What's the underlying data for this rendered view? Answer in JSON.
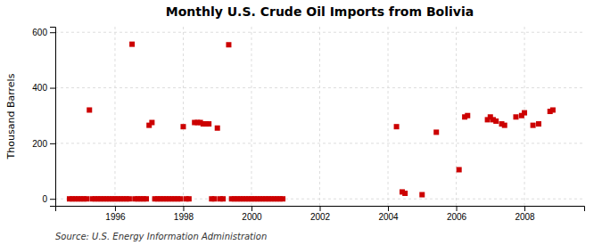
{
  "chart_data": {
    "type": "scatter",
    "title": "Monthly U.S. Crude Oil Imports from Bolivia",
    "ylabel": "Thousand Barrels",
    "annotations": [
      "Source: U.S. Energy Information Administration"
    ],
    "color": "#cc0000",
    "marker": "square",
    "grid": true,
    "xlim": [
      1994.25,
      2009.75
    ],
    "xticks": [
      1996,
      1998,
      2000,
      2002,
      2004,
      2006,
      2008
    ],
    "ylim": [
      -25,
      620
    ],
    "yticks": [
      0,
      200,
      400,
      600
    ],
    "x": [
      1995.25,
      1996.5,
      1997.0,
      1997.083,
      1998.0,
      1998.333,
      1998.417,
      1998.5,
      1998.583,
      1998.667,
      1998.75,
      1999.0,
      1999.333,
      1994.667,
      1994.75,
      1994.833,
      1994.917,
      1995.0,
      1995.083,
      1995.167,
      1995.333,
      1995.417,
      1995.5,
      1995.583,
      1995.667,
      1995.75,
      1995.833,
      1995.917,
      1996.0,
      1996.083,
      1996.167,
      1996.25,
      1996.333,
      1996.417,
      1996.583,
      1996.667,
      1996.75,
      1996.833,
      1996.917,
      1997.167,
      1997.25,
      1997.333,
      1997.417,
      1997.5,
      1997.583,
      1997.667,
      1997.75,
      1997.833,
      1997.917,
      1998.083,
      1998.167,
      1998.833,
      1998.917,
      1999.083,
      1999.167,
      1999.417,
      1999.5,
      1999.583,
      1999.667,
      1999.75,
      1999.833,
      1999.917,
      2000.0,
      2000.083,
      2000.167,
      2000.25,
      2000.333,
      2000.417,
      2000.5,
      2000.583,
      2000.667,
      2000.75,
      2000.833,
      2000.917,
      2004.25,
      2004.417,
      2004.5,
      2005.0,
      2005.417,
      2006.083,
      2006.25,
      2006.333,
      2006.917,
      2007.0,
      2007.083,
      2007.167,
      2007.333,
      2007.417,
      2007.75,
      2007.917,
      2008.0,
      2008.25,
      2008.417,
      2008.75,
      2008.833
    ],
    "values": [
      320,
      557,
      265,
      275,
      260,
      275,
      275,
      275,
      270,
      270,
      270,
      255,
      555,
      0,
      0,
      0,
      0,
      0,
      0,
      0,
      0,
      0,
      0,
      0,
      0,
      0,
      0,
      0,
      0,
      0,
      0,
      0,
      0,
      0,
      0,
      0,
      0,
      0,
      0,
      0,
      0,
      0,
      0,
      0,
      0,
      0,
      0,
      0,
      0,
      0,
      0,
      0,
      0,
      0,
      0,
      0,
      0,
      0,
      0,
      0,
      0,
      0,
      0,
      0,
      0,
      0,
      0,
      0,
      0,
      0,
      0,
      0,
      0,
      0,
      260,
      25,
      20,
      15,
      240,
      105,
      295,
      300,
      285,
      295,
      285,
      280,
      270,
      265,
      295,
      300,
      310,
      265,
      270,
      315,
      320
    ]
  }
}
